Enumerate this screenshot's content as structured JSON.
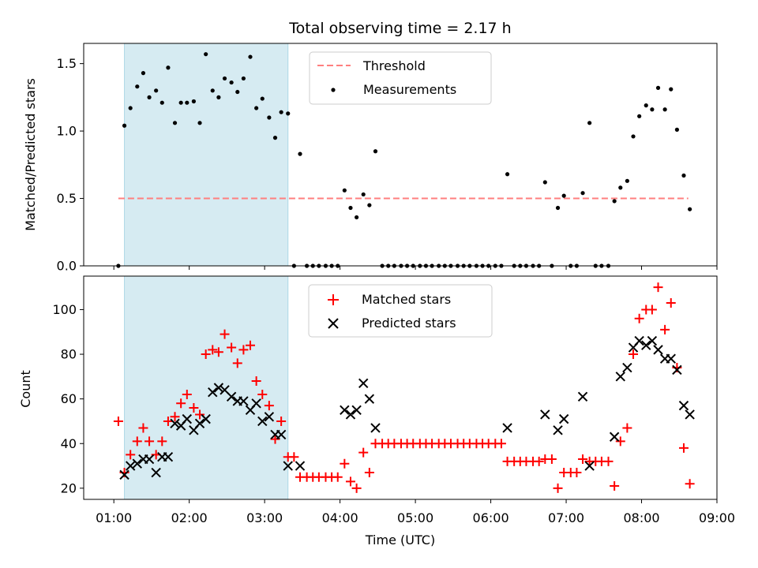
{
  "chart_data": [
    {
      "type": "scatter",
      "title": "Total observing time = 2.17 h",
      "ylabel": "Matched/Predicted stars",
      "xlim": [
        0.6,
        9.0
      ],
      "ylim": [
        0,
        1.65
      ],
      "yticks": [
        0.0,
        0.5,
        1.0,
        1.5
      ],
      "ytick_labels": [
        "0.0",
        "0.5",
        "1.0",
        "1.5"
      ],
      "grid": false,
      "legend_position": "upper-center",
      "shaded_region": {
        "x_start": 1.14,
        "x_end": 3.31,
        "color": "#add8e6"
      },
      "threshold": {
        "name": "Threshold",
        "y": 0.5,
        "x_start": 1.06,
        "x_end": 8.62,
        "color": "#ff7f7f",
        "style": "dashed"
      },
      "series": [
        {
          "name": "Measurements",
          "marker": "dot",
          "color": "#000000",
          "points": [
            [
              1.06,
              0.0
            ],
            [
              1.14,
              1.04
            ],
            [
              1.22,
              1.17
            ],
            [
              1.31,
              1.33
            ],
            [
              1.39,
              1.43
            ],
            [
              1.47,
              1.25
            ],
            [
              1.56,
              1.3
            ],
            [
              1.64,
              1.21
            ],
            [
              1.72,
              1.47
            ],
            [
              1.81,
              1.06
            ],
            [
              1.89,
              1.21
            ],
            [
              1.97,
              1.21
            ],
            [
              2.06,
              1.22
            ],
            [
              2.14,
              1.06
            ],
            [
              2.22,
              1.57
            ],
            [
              2.31,
              1.3
            ],
            [
              2.39,
              1.25
            ],
            [
              2.47,
              1.39
            ],
            [
              2.56,
              1.36
            ],
            [
              2.64,
              1.29
            ],
            [
              2.72,
              1.39
            ],
            [
              2.81,
              1.55
            ],
            [
              2.89,
              1.17
            ],
            [
              2.97,
              1.24
            ],
            [
              3.06,
              1.1
            ],
            [
              3.14,
              0.95
            ],
            [
              3.22,
              1.14
            ],
            [
              3.31,
              1.13
            ],
            [
              3.39,
              0.0
            ],
            [
              3.47,
              0.83
            ],
            [
              3.56,
              0.0
            ],
            [
              3.64,
              0.0
            ],
            [
              3.72,
              0.0
            ],
            [
              3.81,
              0.0
            ],
            [
              3.89,
              0.0
            ],
            [
              3.97,
              0.0
            ],
            [
              4.06,
              0.56
            ],
            [
              4.14,
              0.43
            ],
            [
              4.22,
              0.36
            ],
            [
              4.31,
              0.53
            ],
            [
              4.39,
              0.45
            ],
            [
              4.47,
              0.85
            ],
            [
              4.56,
              0.0
            ],
            [
              4.64,
              0.0
            ],
            [
              4.72,
              0.0
            ],
            [
              4.81,
              0.0
            ],
            [
              4.89,
              0.0
            ],
            [
              4.97,
              0.0
            ],
            [
              5.06,
              0.0
            ],
            [
              5.14,
              0.0
            ],
            [
              5.22,
              0.0
            ],
            [
              5.31,
              0.0
            ],
            [
              5.39,
              0.0
            ],
            [
              5.47,
              0.0
            ],
            [
              5.56,
              0.0
            ],
            [
              5.64,
              0.0
            ],
            [
              5.72,
              0.0
            ],
            [
              5.81,
              0.0
            ],
            [
              5.89,
              0.0
            ],
            [
              5.97,
              0.0
            ],
            [
              6.06,
              0.0
            ],
            [
              6.14,
              0.0
            ],
            [
              6.22,
              0.68
            ],
            [
              6.31,
              0.0
            ],
            [
              6.39,
              0.0
            ],
            [
              6.47,
              0.0
            ],
            [
              6.56,
              0.0
            ],
            [
              6.64,
              0.0
            ],
            [
              6.72,
              0.62
            ],
            [
              6.81,
              0.0
            ],
            [
              6.89,
              0.43
            ],
            [
              6.97,
              0.52
            ],
            [
              7.06,
              0.0
            ],
            [
              7.14,
              0.0
            ],
            [
              7.22,
              0.54
            ],
            [
              7.31,
              1.06
            ],
            [
              7.39,
              0.0
            ],
            [
              7.47,
              0.0
            ],
            [
              7.56,
              0.0
            ],
            [
              7.64,
              0.48
            ],
            [
              7.72,
              0.58
            ],
            [
              7.81,
              0.63
            ],
            [
              7.89,
              0.96
            ],
            [
              7.97,
              1.11
            ],
            [
              8.06,
              1.19
            ],
            [
              8.14,
              1.16
            ],
            [
              8.22,
              1.32
            ],
            [
              8.31,
              1.16
            ],
            [
              8.39,
              1.31
            ],
            [
              8.47,
              1.01
            ],
            [
              8.56,
              0.67
            ],
            [
              8.64,
              0.42
            ]
          ]
        }
      ]
    },
    {
      "type": "scatter",
      "ylabel": "Count",
      "xlabel": "Time (UTC)",
      "xlim": [
        0.6,
        9.0
      ],
      "ylim": [
        15,
        115
      ],
      "xticks": [
        1,
        2,
        3,
        4,
        5,
        6,
        7,
        8,
        9
      ],
      "xtick_labels": [
        "01:00",
        "02:00",
        "03:00",
        "04:00",
        "05:00",
        "06:00",
        "07:00",
        "08:00",
        "09:00"
      ],
      "yticks": [
        20,
        40,
        60,
        80,
        100
      ],
      "ytick_labels": [
        "20",
        "40",
        "60",
        "80",
        "100"
      ],
      "grid": false,
      "legend_position": "upper-center",
      "shaded_region": {
        "x_start": 1.14,
        "x_end": 3.31,
        "color": "#add8e6"
      },
      "series": [
        {
          "name": "Matched stars",
          "marker": "plus",
          "color": "#ff0000",
          "points": [
            [
              1.06,
              50
            ],
            [
              1.14,
              27
            ],
            [
              1.22,
              35
            ],
            [
              1.31,
              41
            ],
            [
              1.39,
              47
            ],
            [
              1.47,
              41
            ],
            [
              1.56,
              35
            ],
            [
              1.64,
              41
            ],
            [
              1.72,
              50
            ],
            [
              1.81,
              52
            ],
            [
              1.89,
              58
            ],
            [
              1.97,
              62
            ],
            [
              2.06,
              56
            ],
            [
              2.14,
              53
            ],
            [
              2.22,
              80
            ],
            [
              2.31,
              82
            ],
            [
              2.39,
              81
            ],
            [
              2.47,
              89
            ],
            [
              2.56,
              83
            ],
            [
              2.64,
              76
            ],
            [
              2.72,
              82
            ],
            [
              2.81,
              84
            ],
            [
              2.89,
              68
            ],
            [
              2.97,
              62
            ],
            [
              3.06,
              57
            ],
            [
              3.14,
              42
            ],
            [
              3.22,
              50
            ],
            [
              3.31,
              34
            ],
            [
              3.39,
              34
            ],
            [
              3.47,
              25
            ],
            [
              3.56,
              25
            ],
            [
              3.64,
              25
            ],
            [
              3.72,
              25
            ],
            [
              3.81,
              25
            ],
            [
              3.89,
              25
            ],
            [
              3.97,
              25
            ],
            [
              4.06,
              31
            ],
            [
              4.14,
              23
            ],
            [
              4.22,
              20
            ],
            [
              4.31,
              36
            ],
            [
              4.39,
              27
            ],
            [
              4.47,
              40
            ],
            [
              4.56,
              40
            ],
            [
              4.64,
              40
            ],
            [
              4.72,
              40
            ],
            [
              4.81,
              40
            ],
            [
              4.89,
              40
            ],
            [
              4.97,
              40
            ],
            [
              5.06,
              40
            ],
            [
              5.14,
              40
            ],
            [
              5.22,
              40
            ],
            [
              5.31,
              40
            ],
            [
              5.39,
              40
            ],
            [
              5.47,
              40
            ],
            [
              5.56,
              40
            ],
            [
              5.64,
              40
            ],
            [
              5.72,
              40
            ],
            [
              5.81,
              40
            ],
            [
              5.89,
              40
            ],
            [
              5.97,
              40
            ],
            [
              6.06,
              40
            ],
            [
              6.14,
              40
            ],
            [
              6.22,
              32
            ],
            [
              6.31,
              32
            ],
            [
              6.39,
              32
            ],
            [
              6.47,
              32
            ],
            [
              6.56,
              32
            ],
            [
              6.64,
              32
            ],
            [
              6.72,
              33
            ],
            [
              6.81,
              33
            ],
            [
              6.89,
              20
            ],
            [
              6.97,
              27
            ],
            [
              7.06,
              27
            ],
            [
              7.14,
              27
            ],
            [
              7.22,
              33
            ],
            [
              7.31,
              32
            ],
            [
              7.39,
              32
            ],
            [
              7.47,
              32
            ],
            [
              7.56,
              32
            ],
            [
              7.64,
              21
            ],
            [
              7.72,
              41
            ],
            [
              7.81,
              47
            ],
            [
              7.89,
              80
            ],
            [
              7.97,
              96
            ],
            [
              8.06,
              100
            ],
            [
              8.14,
              100
            ],
            [
              8.22,
              110
            ],
            [
              8.31,
              91
            ],
            [
              8.39,
              103
            ],
            [
              8.47,
              74
            ],
            [
              8.56,
              38
            ],
            [
              8.64,
              22
            ]
          ]
        },
        {
          "name": "Predicted stars",
          "marker": "x",
          "color": "#000000",
          "points": [
            [
              1.14,
              26
            ],
            [
              1.22,
              30
            ],
            [
              1.31,
              31
            ],
            [
              1.39,
              33
            ],
            [
              1.47,
              33
            ],
            [
              1.56,
              27
            ],
            [
              1.64,
              34
            ],
            [
              1.72,
              34
            ],
            [
              1.81,
              49
            ],
            [
              1.89,
              48
            ],
            [
              1.97,
              51
            ],
            [
              2.06,
              46
            ],
            [
              2.14,
              49
            ],
            [
              2.22,
              51
            ],
            [
              2.31,
              63
            ],
            [
              2.39,
              65
            ],
            [
              2.47,
              64
            ],
            [
              2.56,
              61
            ],
            [
              2.64,
              59
            ],
            [
              2.72,
              59
            ],
            [
              2.81,
              55
            ],
            [
              2.89,
              58
            ],
            [
              2.97,
              50
            ],
            [
              3.06,
              52
            ],
            [
              3.14,
              44
            ],
            [
              3.22,
              44
            ],
            [
              3.31,
              30
            ],
            [
              3.47,
              30
            ],
            [
              4.06,
              55
            ],
            [
              4.14,
              53
            ],
            [
              4.22,
              55
            ],
            [
              4.31,
              67
            ],
            [
              4.39,
              60
            ],
            [
              4.47,
              47
            ],
            [
              6.22,
              47
            ],
            [
              6.72,
              53
            ],
            [
              6.89,
              46
            ],
            [
              6.97,
              51
            ],
            [
              7.22,
              61
            ],
            [
              7.31,
              30
            ],
            [
              7.64,
              43
            ],
            [
              7.72,
              70
            ],
            [
              7.81,
              74
            ],
            [
              7.89,
              83
            ],
            [
              7.97,
              86
            ],
            [
              8.06,
              84
            ],
            [
              8.14,
              86
            ],
            [
              8.22,
              82
            ],
            [
              8.31,
              78
            ],
            [
              8.39,
              78
            ],
            [
              8.47,
              73
            ],
            [
              8.56,
              57
            ],
            [
              8.64,
              53
            ]
          ]
        }
      ]
    }
  ]
}
